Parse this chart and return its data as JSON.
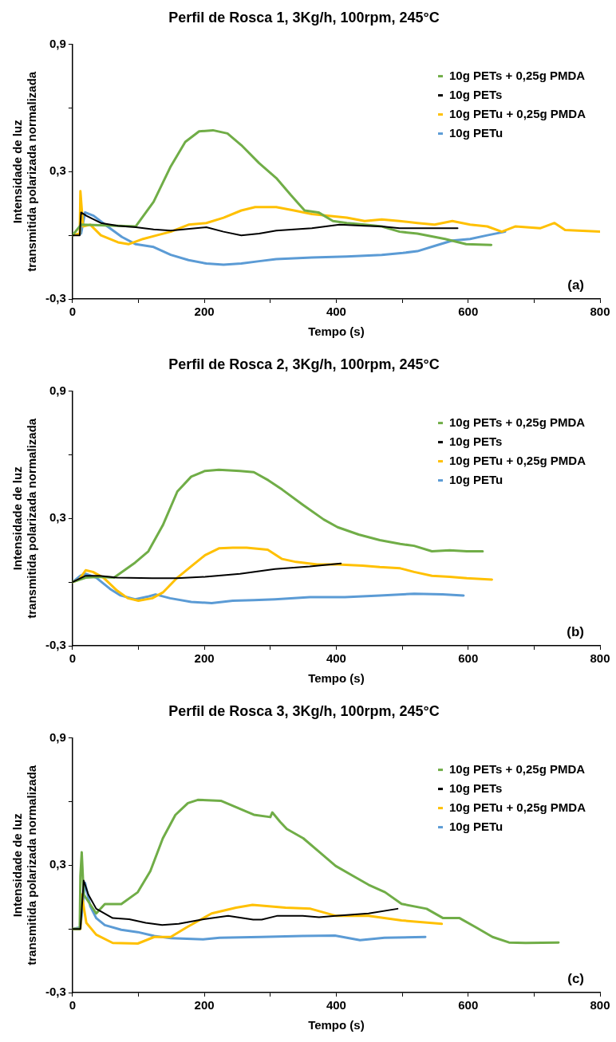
{
  "chart_data": [
    {
      "type": "line",
      "title": "Perfil de Rosca 1, 3Kg/h, 100rpm, 245°C",
      "xlabel": "Tempo (s)",
      "ylabel": "Intensidade de luz transmitida polarizada normalizada",
      "annotations": [
        "(a)"
      ],
      "legend": "top right",
      "grid": false,
      "marker": "none",
      "line_style": "solid",
      "xlim": [
        0,
        800
      ],
      "xticks": [
        0,
        {
          "value": 100,
          "label": null
        },
        200,
        {
          "value": 300,
          "label": null
        },
        400,
        {
          "value": 500,
          "label": null
        },
        600,
        {
          "value": 700,
          "label": null
        },
        800
      ],
      "ylim": [
        -0.3,
        0.9
      ],
      "yticks": [
        {
          "value": -0.3,
          "label": "-0,3"
        },
        {
          "value": 0,
          "label": null
        },
        {
          "value": 0.3,
          "label": "0,3"
        },
        {
          "value": 0.6,
          "label": null
        },
        {
          "value": 0.9,
          "label": "0,9"
        }
      ],
      "series": [
        {
          "name": "10g PETs + 0,25g PMDA",
          "color": "#70ad47",
          "x": [
            0,
            13,
            96,
            123,
            149,
            171,
            192,
            213,
            235,
            256,
            283,
            309,
            331,
            352,
            373,
            395,
            416,
            443,
            469,
            496,
            523,
            565,
            597,
            635
          ],
          "values": [
            0,
            0.05,
            0.042,
            0.158,
            0.325,
            0.44,
            0.49,
            0.495,
            0.48,
            0.425,
            0.34,
            0.27,
            0.19,
            0.117,
            0.108,
            0.067,
            0.058,
            0.05,
            0.042,
            0.017,
            0.008,
            -0.017,
            -0.042,
            -0.045
          ]
        },
        {
          "name": "10g PETs",
          "color": "#000000",
          "x": [
            0,
            11,
            13,
            21,
            43,
            69,
            96,
            123,
            149,
            203,
            229,
            256,
            283,
            309,
            363,
            405,
            443,
            469,
            496,
            523,
            584
          ],
          "values": [
            0,
            0,
            0.108,
            0.092,
            0.058,
            0.045,
            0.038,
            0.028,
            0.022,
            0.038,
            0.017,
            0,
            0.008,
            0.022,
            0.033,
            0.05,
            0.045,
            0.042,
            0.033,
            0.033,
            0.033
          ]
        },
        {
          "name": "10g PETu + 0,25g PMDA",
          "color": "#ffc000",
          "x": [
            0,
            11,
            12,
            16,
            27,
            43,
            69,
            85,
            107,
            128,
            149,
            176,
            203,
            229,
            256,
            277,
            309,
            336,
            363,
            389,
            416,
            443,
            469,
            496,
            523,
            549,
            576,
            603,
            629,
            651,
            672,
            709,
            731,
            747,
            800
          ],
          "values": [
            0,
            0.008,
            0.208,
            0.042,
            0.05,
            0,
            -0.033,
            -0.042,
            -0.017,
            0,
            0.017,
            0.05,
            0.058,
            0.083,
            0.117,
            0.133,
            0.133,
            0.117,
            0.1,
            0.092,
            0.083,
            0.067,
            0.075,
            0.067,
            0.058,
            0.05,
            0.067,
            0.05,
            0.042,
            0.017,
            0.042,
            0.033,
            0.058,
            0.025,
            0.017
          ]
        },
        {
          "name": "10g PETu",
          "color": "#5b9bd5",
          "x": [
            0,
            13,
            19,
            32,
            53,
            75,
            96,
            123,
            149,
            176,
            203,
            229,
            256,
            283,
            309,
            363,
            416,
            469,
            501,
            523,
            549,
            576,
            603,
            629,
            656
          ],
          "values": [
            0,
            0.008,
            0.108,
            0.092,
            0.042,
            -0.008,
            -0.042,
            -0.055,
            -0.092,
            -0.117,
            -0.133,
            -0.138,
            -0.133,
            -0.122,
            -0.112,
            -0.105,
            -0.1,
            -0.092,
            -0.083,
            -0.075,
            -0.05,
            -0.025,
            -0.017,
            0,
            0.017
          ]
        }
      ]
    },
    {
      "type": "line",
      "title": "Perfil de Rosca 2, 3Kg/h, 100rpm, 245°C",
      "xlabel": "Tempo (s)",
      "ylabel": "Intensidade de luz transmitida polarizada normalizada",
      "annotations": [
        "(b)"
      ],
      "legend": "top right",
      "grid": false,
      "marker": "none",
      "line_style": "solid",
      "xlim": [
        0,
        800
      ],
      "xticks": [
        0,
        {
          "value": 100,
          "label": null
        },
        200,
        {
          "value": 300,
          "label": null
        },
        400,
        {
          "value": 500,
          "label": null
        },
        600,
        {
          "value": 700,
          "label": null
        },
        800
      ],
      "ylim": [
        -0.3,
        0.9
      ],
      "yticks": [
        {
          "value": -0.3,
          "label": "-0,3"
        },
        {
          "value": 0,
          "label": null
        },
        {
          "value": 0.3,
          "label": "0,3"
        },
        {
          "value": 0.6,
          "label": null
        },
        {
          "value": 0.9,
          "label": "0,9"
        }
      ],
      "series": [
        {
          "name": "10g PETs + 0,25g PMDA",
          "color": "#70ad47",
          "x": [
            0,
            20,
            41,
            63,
            95,
            115,
            137,
            159,
            180,
            201,
            222,
            254,
            275,
            297,
            318,
            349,
            381,
            402,
            434,
            466,
            497,
            518,
            545,
            572,
            598,
            622
          ],
          "values": [
            0,
            0.021,
            0.025,
            0.021,
            0.092,
            0.145,
            0.268,
            0.427,
            0.497,
            0.524,
            0.529,
            0.524,
            0.518,
            0.48,
            0.436,
            0.365,
            0.295,
            0.259,
            0.224,
            0.198,
            0.18,
            0.171,
            0.145,
            0.15,
            0.145,
            0.145
          ]
        },
        {
          "name": "10g PETs",
          "color": "#000000",
          "x": [
            0,
            20,
            41,
            67,
            121,
            158,
            201,
            254,
            307,
            360,
            407
          ],
          "values": [
            0,
            0.03,
            0.03,
            0.021,
            0.018,
            0.018,
            0.025,
            0.039,
            0.062,
            0.074,
            0.088
          ]
        },
        {
          "name": "10g PETu + 0,25g PMDA",
          "color": "#ffc000",
          "x": [
            0,
            10,
            20,
            31,
            47,
            68,
            84,
            100,
            121,
            137,
            159,
            180,
            201,
            222,
            243,
            264,
            296,
            318,
            339,
            371,
            402,
            440,
            466,
            497,
            518,
            545,
            572,
            598,
            636
          ],
          "values": [
            0,
            0.012,
            0.056,
            0.048,
            0.021,
            -0.041,
            -0.076,
            -0.088,
            -0.076,
            -0.049,
            0.021,
            0.074,
            0.127,
            0.159,
            0.162,
            0.162,
            0.153,
            0.109,
            0.095,
            0.083,
            0.083,
            0.078,
            0.071,
            0.065,
            0.048,
            0.03,
            0.025,
            0.018,
            0.012
          ]
        },
        {
          "name": "10g PETu",
          "color": "#5b9bd5",
          "x": [
            0,
            12,
            20,
            36,
            57,
            73,
            95,
            116,
            126,
            148,
            180,
            211,
            243,
            275,
            307,
            360,
            413,
            466,
            518,
            561,
            593
          ],
          "values": [
            0,
            0.03,
            0.039,
            0.021,
            -0.032,
            -0.063,
            -0.081,
            -0.067,
            -0.058,
            -0.076,
            -0.093,
            -0.099,
            -0.088,
            -0.085,
            -0.081,
            -0.071,
            -0.071,
            -0.063,
            -0.055,
            -0.058,
            -0.063
          ]
        }
      ]
    },
    {
      "type": "line",
      "title": "Perfil de Rosca 3, 3Kg/h, 100rpm, 245°C",
      "xlabel": "Tempo (s)",
      "ylabel": "Intensidade de luz transmitida polarizada normalizada",
      "annotations": [
        "(c)"
      ],
      "legend": "top right",
      "grid": false,
      "marker": "none",
      "line_style": "solid",
      "xlim": [
        0,
        800
      ],
      "xticks": [
        0,
        {
          "value": 100,
          "label": null
        },
        200,
        {
          "value": 300,
          "label": null
        },
        400,
        {
          "value": 500,
          "label": null
        },
        600,
        {
          "value": 700,
          "label": null
        },
        800
      ],
      "ylim": [
        -0.3,
        0.9
      ],
      "yticks": [
        {
          "value": -0.3,
          "label": "-0,3"
        },
        {
          "value": 0,
          "label": null
        },
        {
          "value": 0.3,
          "label": "0,3"
        },
        {
          "value": 0.6,
          "label": null
        },
        {
          "value": 0.9,
          "label": "0,9"
        }
      ],
      "series": [
        {
          "name": "10g PETs + 0,25g PMDA",
          "color": "#70ad47",
          "x": [
            0,
            11,
            12,
            14,
            17,
            36,
            49,
            74,
            99,
            118,
            137,
            156,
            175,
            190,
            225,
            250,
            275,
            300,
            303,
            315,
            325,
            350,
            375,
            399,
            424,
            449,
            474,
            499,
            537,
            562,
            587,
            612,
            637,
            662,
            687,
            737
          ],
          "values": [
            0,
            0,
            0.25,
            0.361,
            0.162,
            0.073,
            0.117,
            0.117,
            0.173,
            0.272,
            0.427,
            0.537,
            0.593,
            0.608,
            0.604,
            0.571,
            0.538,
            0.527,
            0.549,
            0.504,
            0.471,
            0.427,
            0.361,
            0.297,
            0.252,
            0.208,
            0.173,
            0.118,
            0.095,
            0.051,
            0.051,
            0.007,
            -0.038,
            -0.064,
            -0.066,
            -0.064
          ]
        },
        {
          "name": "10g PETs",
          "color": "#000000",
          "x": [
            0,
            12,
            17,
            24,
            36,
            61,
            86,
            111,
            136,
            161,
            199,
            236,
            274,
            287,
            311,
            349,
            374,
            399,
            449,
            493
          ],
          "values": [
            0,
            0,
            0.228,
            0.162,
            0.095,
            0.051,
            0.046,
            0.029,
            0.018,
            0.024,
            0.046,
            0.062,
            0.044,
            0.044,
            0.062,
            0.062,
            0.055,
            0.062,
            0.073,
            0.095
          ]
        },
        {
          "name": "10g PETu + 0,25g PMDA",
          "color": "#ffc000",
          "x": [
            0,
            12,
            14,
            21,
            36,
            61,
            99,
            124,
            149,
            173,
            211,
            248,
            273,
            323,
            361,
            399,
            449,
            499,
            560
          ],
          "values": [
            0,
            0,
            0.162,
            0.029,
            -0.027,
            -0.066,
            -0.069,
            -0.038,
            -0.038,
            0.007,
            0.073,
            0.1,
            0.113,
            0.1,
            0.095,
            0.062,
            0.062,
            0.04,
            0.024
          ]
        },
        {
          "name": "10g PETu",
          "color": "#5b9bd5",
          "x": [
            0,
            12,
            19,
            27,
            36,
            49,
            74,
            99,
            124,
            149,
            198,
            223,
            286,
            348,
            398,
            436,
            473,
            535
          ],
          "values": [
            0,
            0.007,
            0.217,
            0.106,
            0.051,
            0.018,
            -0.004,
            -0.015,
            -0.033,
            -0.044,
            -0.049,
            -0.042,
            -0.038,
            -0.033,
            -0.031,
            -0.053,
            -0.042,
            -0.038
          ]
        }
      ]
    }
  ]
}
